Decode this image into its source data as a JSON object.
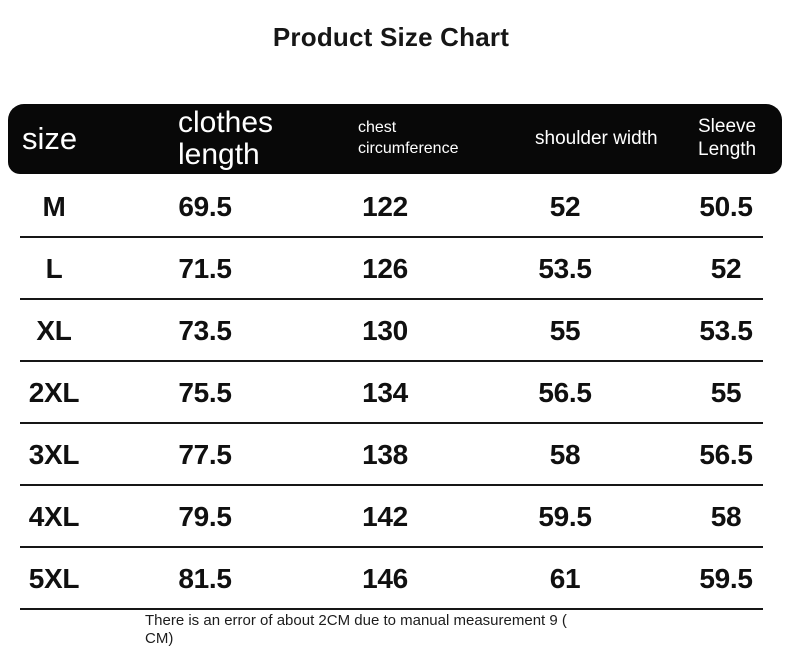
{
  "colors": {
    "header_bg": "#080808",
    "header_text": "#ffffff",
    "body_text": "#101010",
    "row_divider": "#161616",
    "background": "#ffffff"
  },
  "chart_data": {
    "type": "table",
    "title": "Product Size Chart",
    "unit": "CM",
    "columns": [
      "size",
      "clothes length",
      "chest circumference",
      "shoulder width",
      "Sleeve Length"
    ],
    "rows": [
      [
        "M",
        "69.5",
        "122",
        "52",
        "50.5"
      ],
      [
        "L",
        "71.5",
        "126",
        "53.5",
        "52"
      ],
      [
        "XL",
        "73.5",
        "130",
        "55",
        "53.5"
      ],
      [
        "2XL",
        "75.5",
        "134",
        "56.5",
        "55"
      ],
      [
        "3XL",
        "77.5",
        "138",
        "58",
        "56.5"
      ],
      [
        "4XL",
        "79.5",
        "142",
        "59.5",
        "58"
      ],
      [
        "5XL",
        "81.5",
        "146",
        "61",
        "59.5"
      ]
    ],
    "note_lines": [
      "There is an error of about 2CM due to manual measurement 9 (",
      "CM)"
    ]
  }
}
